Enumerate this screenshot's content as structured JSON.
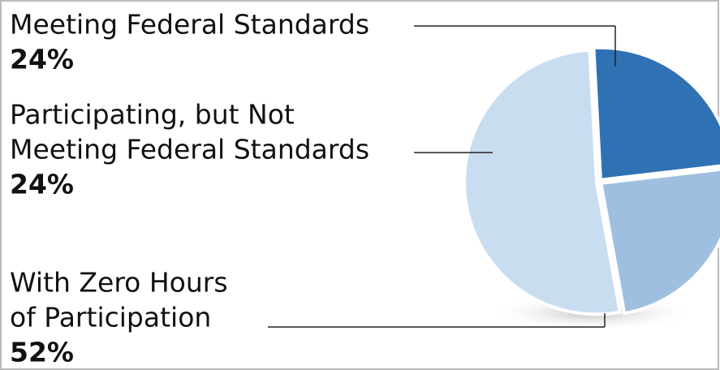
{
  "chart_data": {
    "type": "pie",
    "categories": [
      [
        "Meeting Federal Standards"
      ],
      [
        "Participating, but Not",
        "Meeting Federal Standards"
      ],
      [
        "With Zero Hours",
        "of Participation"
      ]
    ],
    "values": [
      24,
      24,
      52
    ],
    "value_labels": [
      "24%",
      "24%",
      "52%"
    ],
    "colors": [
      "#2f72b3",
      "#9ebfe0",
      "#c9ddf1"
    ]
  }
}
